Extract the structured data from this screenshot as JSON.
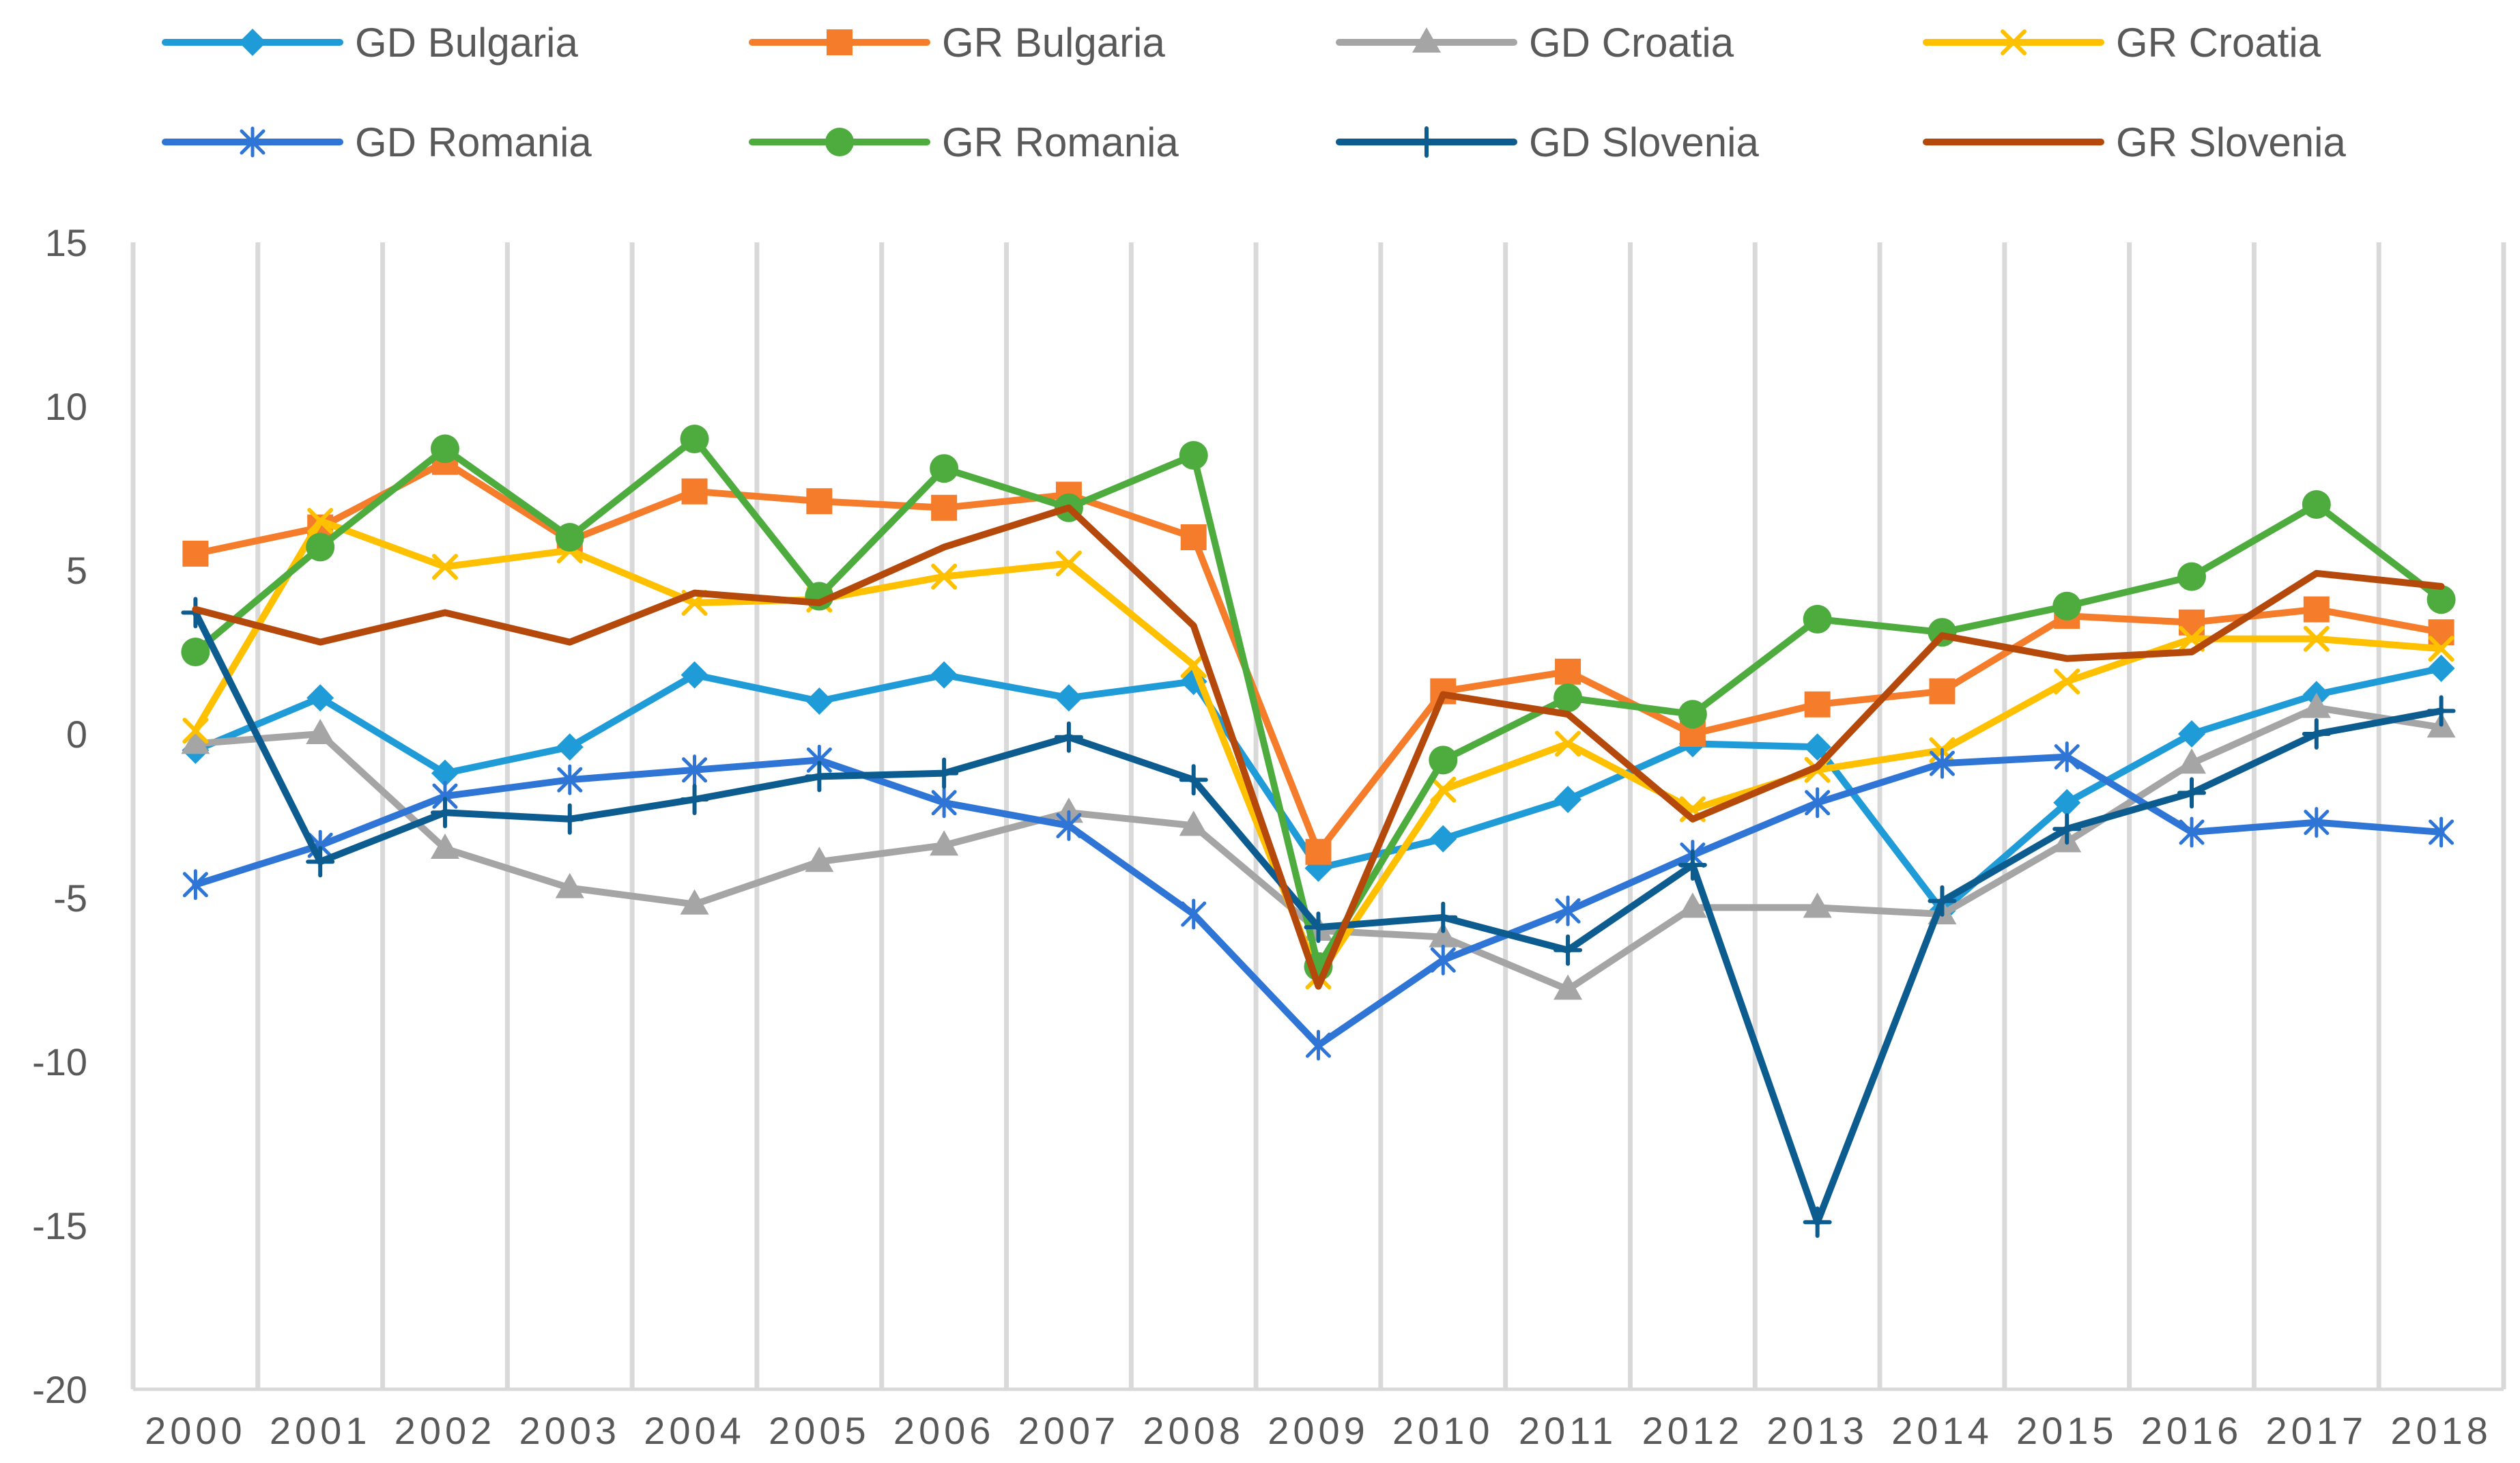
{
  "chart_data": {
    "type": "line",
    "title": "",
    "xlabel": "",
    "ylabel": "",
    "ylim": [
      -20,
      15
    ],
    "yticks": [
      15,
      10,
      5,
      0,
      -5,
      -10,
      -15,
      -20
    ],
    "grid": "vertical",
    "legend_position": "top",
    "categories": [
      "2000",
      "2001",
      "2002",
      "2003",
      "2004",
      "2005",
      "2006",
      "2007",
      "2008",
      "2009",
      "2010",
      "2011",
      "2012",
      "2013",
      "2014",
      "2015",
      "2016",
      "2017",
      "2018"
    ],
    "series": [
      {
        "name": "GD Bulgaria",
        "color": "#1f9bd7",
        "marker": "diamond",
        "values": [
          -0.5,
          1.1,
          -1.2,
          -0.4,
          1.8,
          1.0,
          1.8,
          1.1,
          1.6,
          -4.1,
          -3.2,
          -2.0,
          -0.3,
          -0.4,
          -5.4,
          -2.1,
          0.0,
          1.2,
          2.0
        ]
      },
      {
        "name": "GR Bulgaria",
        "color": "#f47c2a",
        "marker": "square",
        "values": [
          5.5,
          6.3,
          8.3,
          5.9,
          7.4,
          7.1,
          6.9,
          7.3,
          6.0,
          -3.6,
          1.3,
          1.9,
          0.0,
          0.9,
          1.3,
          3.6,
          3.4,
          3.8,
          3.1
        ]
      },
      {
        "name": "GD Croatia",
        "color": "#a5a5a5",
        "marker": "triangle",
        "values": [
          -0.3,
          0.0,
          -3.5,
          -4.7,
          -5.2,
          -3.9,
          -3.4,
          -2.4,
          -2.8,
          -6.0,
          -6.2,
          -7.8,
          -5.3,
          -5.3,
          -5.5,
          -3.3,
          -0.9,
          0.8,
          0.2
        ]
      },
      {
        "name": "GR Croatia",
        "color": "#ffc000",
        "marker": "x",
        "values": [
          0.1,
          6.5,
          5.1,
          5.6,
          4.0,
          4.1,
          4.8,
          5.2,
          2.1,
          -7.4,
          -1.7,
          -0.3,
          -2.3,
          -1.1,
          -0.5,
          1.6,
          2.9,
          2.9,
          2.6
        ]
      },
      {
        "name": "GD Romania",
        "color": "#2e75d6",
        "marker": "star",
        "values": [
          -4.6,
          -3.4,
          -1.9,
          -1.4,
          -1.1,
          -0.8,
          -2.1,
          -2.8,
          -5.5,
          -9.5,
          -6.9,
          -5.4,
          -3.7,
          -2.1,
          -0.9,
          -0.7,
          -3.0,
          -2.7,
          -3.0
        ]
      },
      {
        "name": "GR Romania",
        "color": "#4eac3e",
        "marker": "circle",
        "values": [
          2.5,
          5.7,
          8.7,
          6.0,
          9.0,
          4.2,
          8.1,
          6.9,
          8.5,
          -7.1,
          -0.8,
          1.1,
          0.6,
          3.5,
          3.1,
          3.9,
          4.8,
          7.0,
          4.1
        ]
      },
      {
        "name": "GD Slovenia",
        "color": "#0d5c8f",
        "marker": "plus",
        "values": [
          3.7,
          -3.9,
          -2.4,
          -2.6,
          -2.0,
          -1.3,
          -1.2,
          -0.1,
          -1.4,
          -5.9,
          -5.6,
          -6.6,
          -4.0,
          -14.9,
          -5.1,
          -2.9,
          -1.8,
          0.0,
          0.7
        ]
      },
      {
        "name": "GR Slovenia",
        "color": "#b5490c",
        "marker": "none",
        "values": [
          3.8,
          2.8,
          3.7,
          2.8,
          4.3,
          4.0,
          5.7,
          6.9,
          3.3,
          -7.7,
          1.2,
          0.6,
          -2.6,
          -1.0,
          3.0,
          2.3,
          2.5,
          4.9,
          4.5
        ]
      }
    ]
  }
}
